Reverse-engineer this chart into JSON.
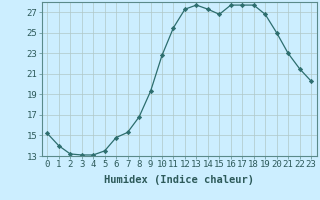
{
  "title": "",
  "xlabel": "Humidex (Indice chaleur)",
  "ylabel": "",
  "x_values": [
    0,
    1,
    2,
    3,
    4,
    5,
    6,
    7,
    8,
    9,
    10,
    11,
    12,
    13,
    14,
    15,
    16,
    17,
    18,
    19,
    20,
    21,
    22,
    23
  ],
  "y_values": [
    15.2,
    14.0,
    13.2,
    13.1,
    13.1,
    13.5,
    14.8,
    15.3,
    16.8,
    19.3,
    22.8,
    25.5,
    27.3,
    27.7,
    27.3,
    26.8,
    27.7,
    27.7,
    27.7,
    26.8,
    25.0,
    23.0,
    21.5,
    20.3
  ],
  "line_color": "#2d6e6e",
  "marker": "D",
  "marker_size": 2.2,
  "bg_color": "#cceeff",
  "grid_color": "#b0c8c8",
  "ylim": [
    13,
    28
  ],
  "yticks": [
    13,
    15,
    17,
    19,
    21,
    23,
    25,
    27
  ],
  "xlim": [
    -0.5,
    23.5
  ],
  "xticks": [
    0,
    1,
    2,
    3,
    4,
    5,
    6,
    7,
    8,
    9,
    10,
    11,
    12,
    13,
    14,
    15,
    16,
    17,
    18,
    19,
    20,
    21,
    22,
    23
  ],
  "tick_fontsize": 6.5,
  "label_fontsize": 7.5,
  "spine_color": "#5a8a8a"
}
